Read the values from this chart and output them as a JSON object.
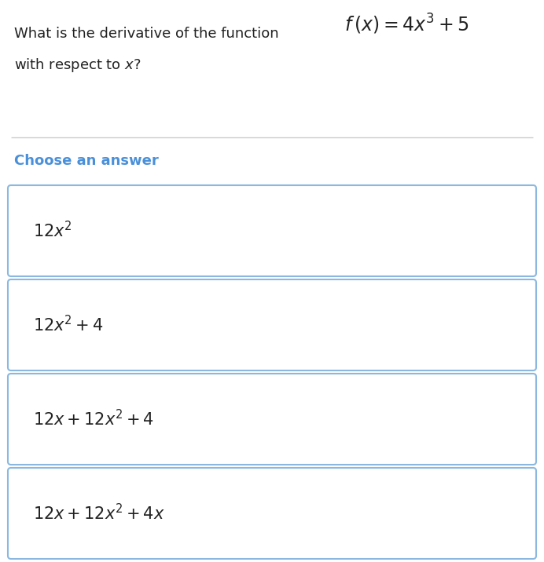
{
  "background_color": "#ffffff",
  "question_text_1": "What is the derivative of the function",
  "question_formula": "$f\\,(x) = 4x^3 + 5$",
  "question_text_2": "with respect to $x$?",
  "section_label": "Choose an answer",
  "section_label_color": "#4a90d9",
  "answers": [
    "$12x^2$",
    "$12x^2 + 4$",
    "$12x + 12x^2 + 4$",
    "$12x + 12x^2 + 4x$"
  ],
  "box_edge_color": "#8ab8e0",
  "box_face_color": "#ffffff",
  "divider_color": "#cccccc",
  "text_color": "#222222",
  "question_fontsize": 13,
  "formula_fontsize": 17,
  "label_fontsize": 13,
  "answer_fontsize": 15,
  "fig_width": 6.92,
  "fig_height": 7.16,
  "dpi": 100
}
